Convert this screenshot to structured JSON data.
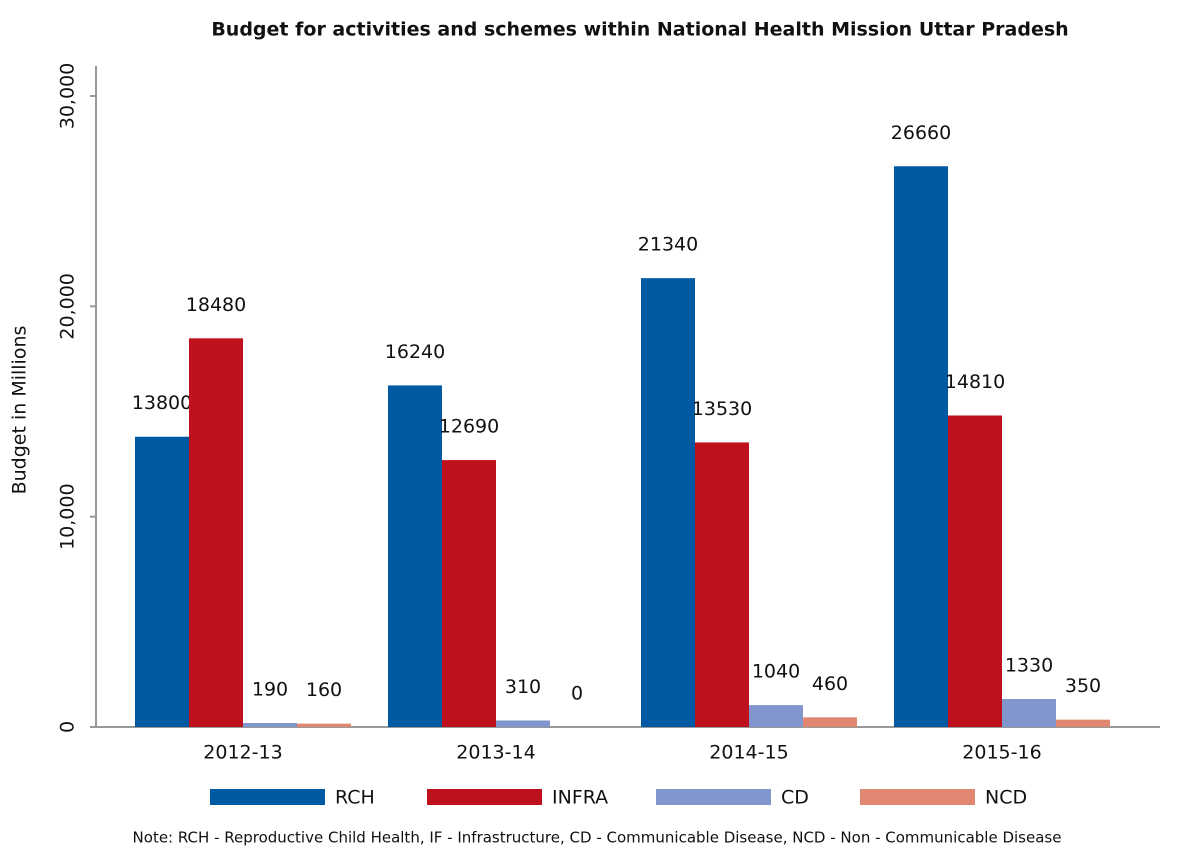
{
  "chart_data": {
    "type": "bar",
    "title": "Budget for activities and schemes within National Health Mission Uttar Pradesh",
    "y_label": "Budget in Millions",
    "note": "Note: RCH - Reproductive Child Health, IF - Infrastructure, CD - Communicable Disease, NCD - Non - Communicable Disease",
    "categories": [
      "2012-13",
      "2013-14",
      "2014-15",
      "2015-16"
    ],
    "series": [
      {
        "name": "RCH",
        "color": "#005aa3",
        "values": [
          13800,
          16240,
          21340,
          26660
        ]
      },
      {
        "name": "INFRA",
        "color": "#bf111b",
        "values": [
          18480,
          12690,
          13530,
          14810
        ]
      },
      {
        "name": "CD",
        "color": "#8096cc",
        "values": [
          190,
          310,
          1040,
          1330
        ]
      },
      {
        "name": "NCD",
        "color": "#df8770",
        "values": [
          160,
          0,
          460,
          350
        ]
      }
    ],
    "ylim": [
      0,
      30000
    ],
    "yticks": [
      0,
      {
        "value": 10000,
        "label": "10,000"
      },
      {
        "value": 20000,
        "label": "20,000"
      },
      {
        "value": 30000,
        "label": "30,000"
      }
    ],
    "legend": "bottom"
  }
}
